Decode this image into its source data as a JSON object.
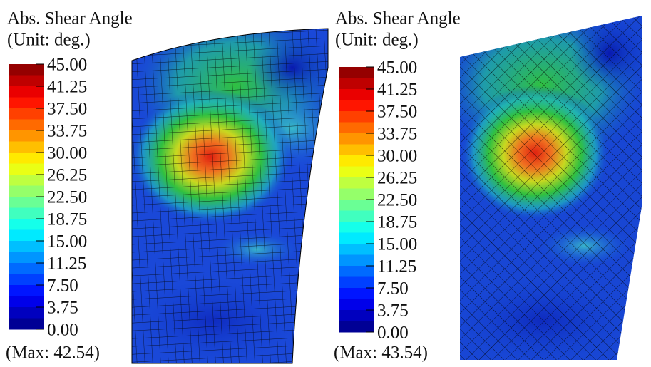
{
  "panels": [
    {
      "title": "Abs. Shear Angle",
      "unit": "(Unit: deg.)",
      "legend_labels": [
        "45.00",
        "41.25",
        "37.50",
        "33.75",
        "30.00",
        "26.25",
        "22.50",
        "18.75",
        "15.00",
        "11.25",
        "7.50",
        "3.75",
        "0.00"
      ],
      "max_label": "(Max: 42.54)"
    },
    {
      "title": "Abs. Shear Angle",
      "unit": "(Unit: deg.)",
      "legend_labels": [
        "45.00",
        "41.25",
        "37.50",
        "33.75",
        "30.00",
        "26.25",
        "22.50",
        "18.75",
        "15.00",
        "11.25",
        "7.50",
        "3.75",
        "0.00"
      ],
      "max_label": "(Max: 43.54)"
    }
  ]
}
